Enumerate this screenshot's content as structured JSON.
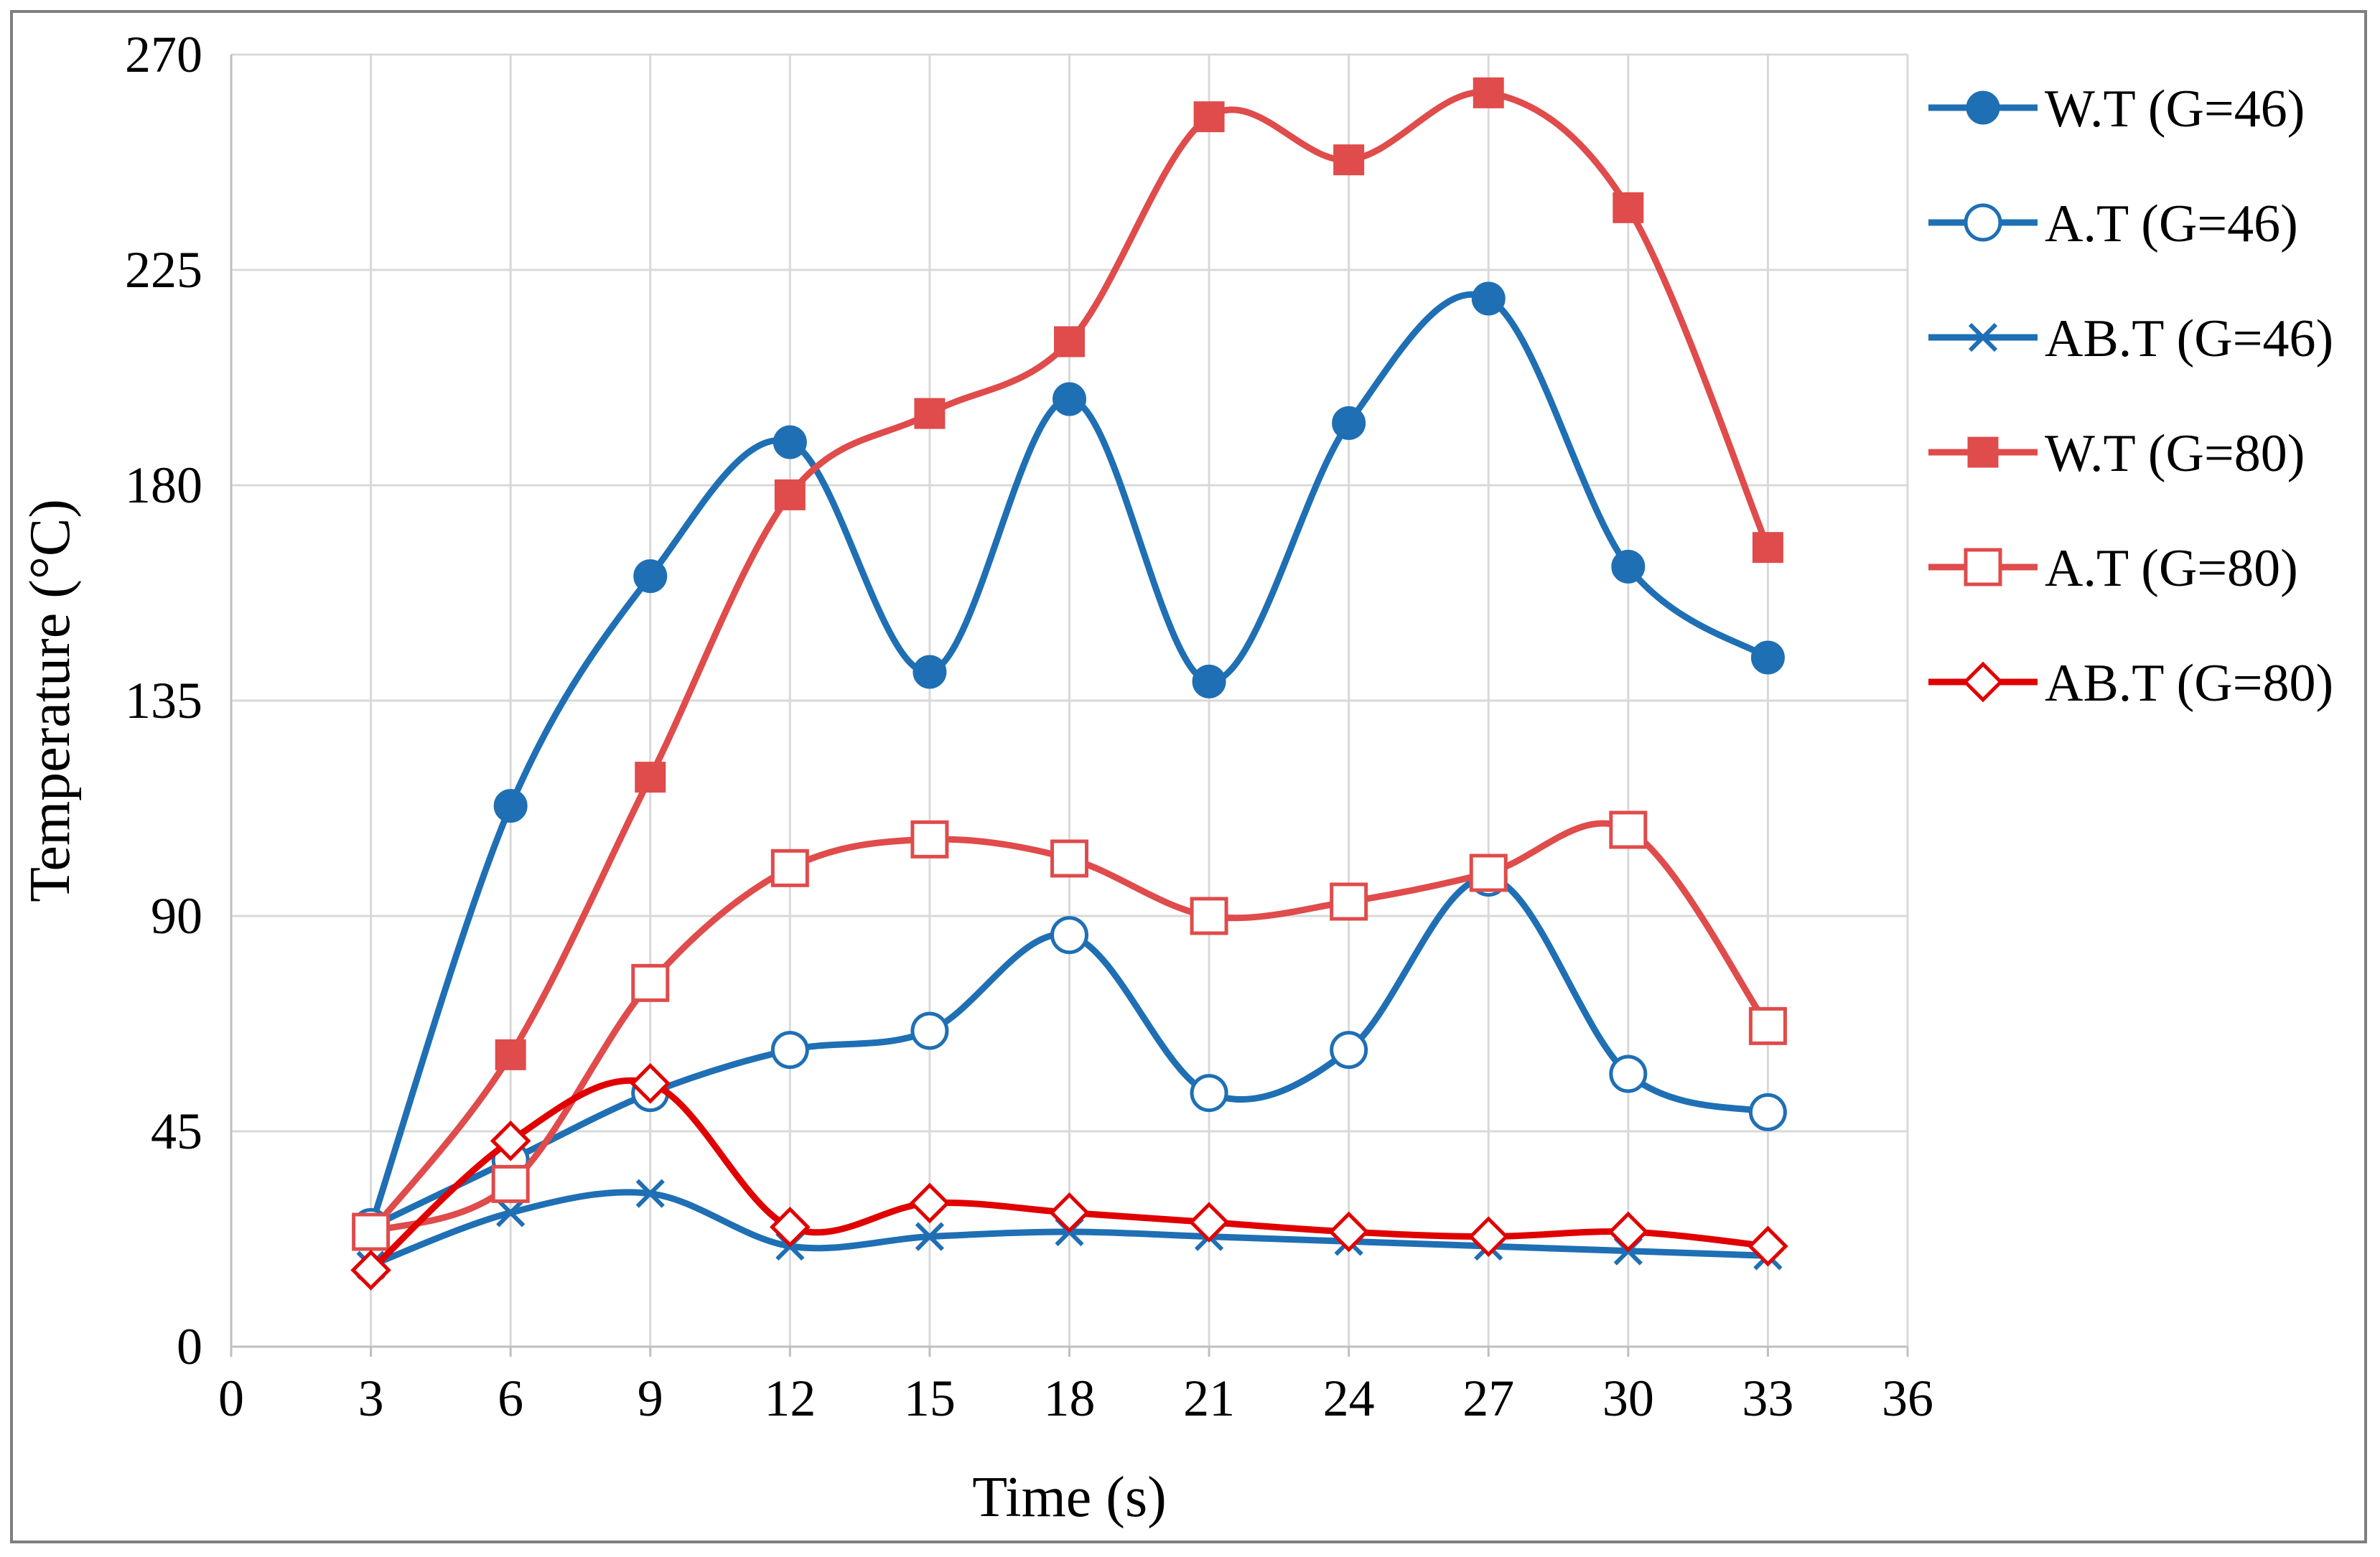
{
  "chart_data": {
    "type": "line",
    "title": "",
    "xlabel": "Time (s)",
    "ylabel": "Temperature (°C)",
    "xlim": [
      0,
      36
    ],
    "ylim": [
      0,
      270
    ],
    "xticks": [
      0,
      3,
      6,
      9,
      12,
      15,
      18,
      21,
      24,
      27,
      30,
      33,
      36
    ],
    "yticks": [
      0,
      45,
      90,
      135,
      180,
      225,
      270
    ],
    "grid": true,
    "legend_position": "right",
    "x": [
      3,
      6,
      9,
      12,
      15,
      18,
      21,
      24,
      27,
      30,
      33
    ],
    "series": [
      {
        "name": "W.T (G=46)",
        "color": "#1f6fb4",
        "marker": "filled-circle",
        "values": [
          25,
          113,
          161,
          189,
          141,
          198,
          139,
          193,
          219,
          163,
          144
        ]
      },
      {
        "name": "A.T (G=46)",
        "color": "#1f6fb4",
        "marker": "open-circle",
        "values": [
          25,
          39,
          53,
          62,
          66,
          86,
          53,
          62,
          98,
          57,
          49
        ]
      },
      {
        "name": "AB.T (G=46)",
        "color": "#1f6fb4",
        "marker": "x",
        "values": [
          17,
          28,
          32,
          21,
          23,
          24,
          23,
          22,
          21,
          20,
          19
        ]
      },
      {
        "name": "W.T (G=80)",
        "color": "#e04b4b",
        "marker": "filled-square",
        "values": [
          24,
          61,
          119,
          178,
          195,
          210,
          257,
          248,
          262,
          238,
          167
        ]
      },
      {
        "name": "A.T (G=80)",
        "color": "#e04b4b",
        "marker": "open-square",
        "values": [
          24,
          34,
          76,
          100,
          106,
          102,
          90,
          93,
          99,
          108,
          67
        ]
      },
      {
        "name": "AB.T (G=80)",
        "color": "#e00000",
        "marker": "open-diamond",
        "values": [
          16,
          43,
          55,
          25,
          30,
          28,
          26,
          24,
          23,
          24,
          21
        ]
      }
    ]
  }
}
